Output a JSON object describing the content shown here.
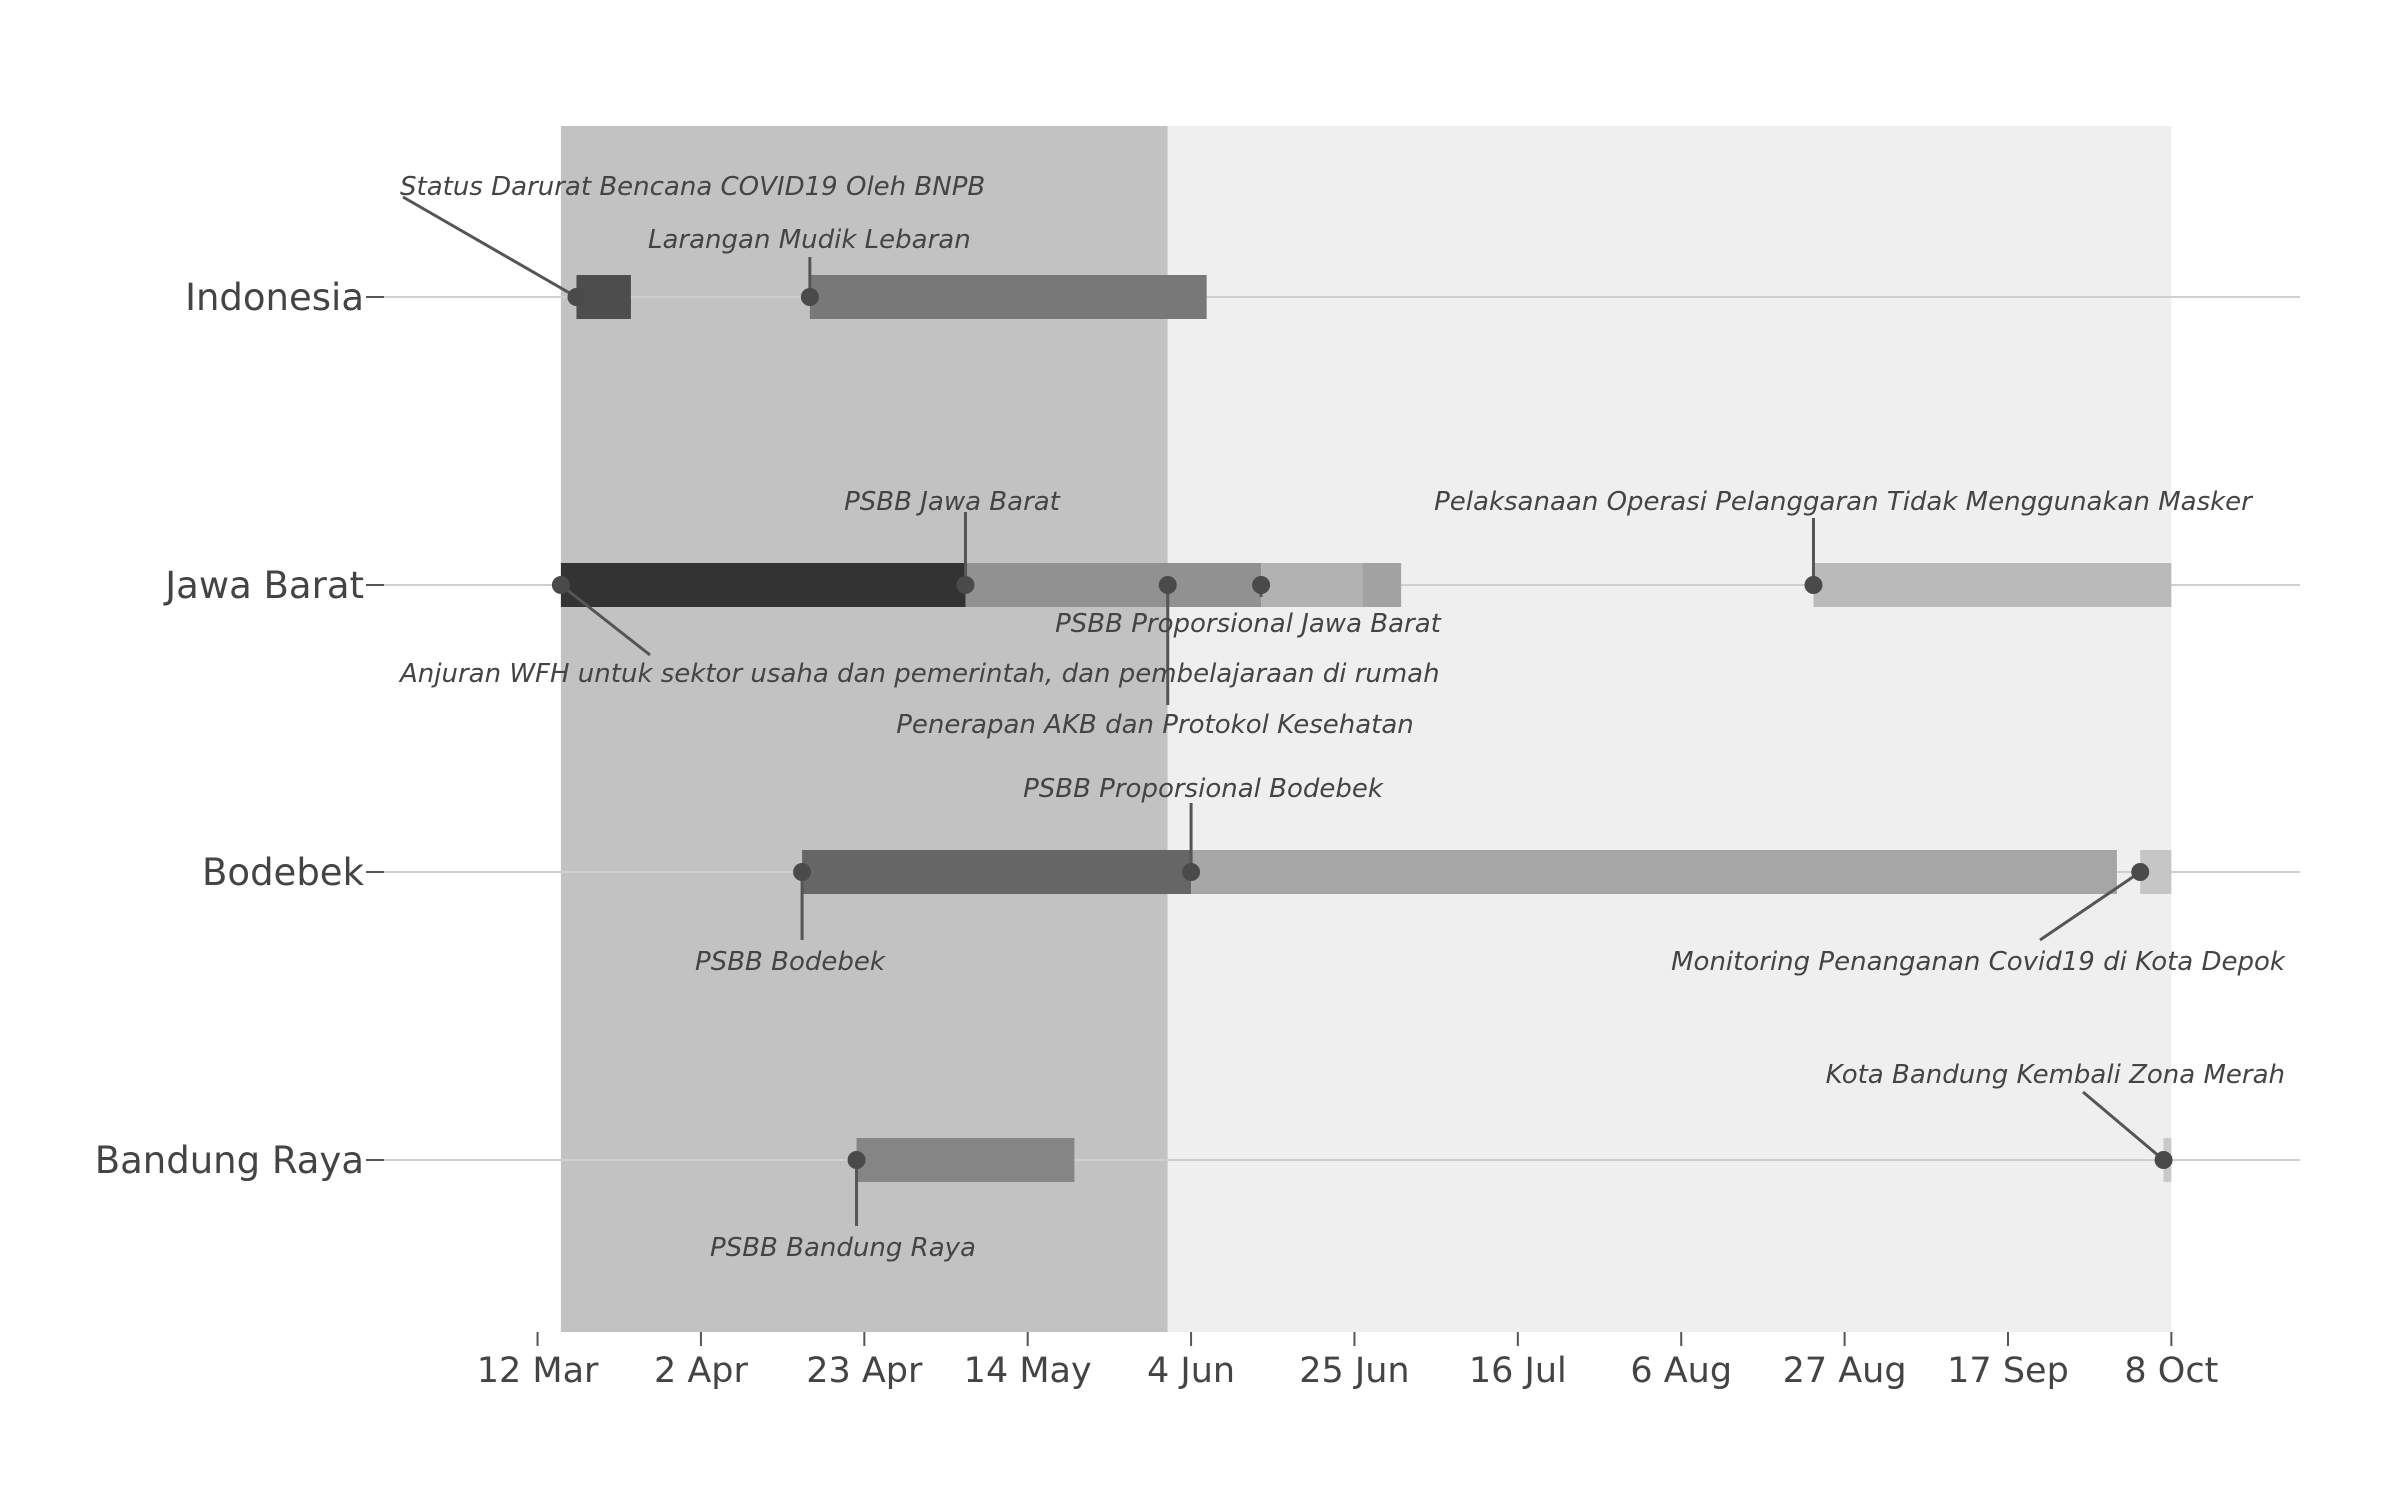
{
  "chart_data": {
    "type": "timeline",
    "title": "",
    "xlabel": "",
    "ylabel": "",
    "x_range": [
      "2020-03-10",
      "2020-10-14"
    ],
    "grid": "horizontal",
    "categories": [
      "Indonesia",
      "Jawa Barat",
      "Bodebek",
      "Bandung Raya"
    ],
    "x_ticks": [
      {
        "date": "2020-03-12",
        "label": "12 Mar"
      },
      {
        "date": "2020-04-02",
        "label": "2 Apr"
      },
      {
        "date": "2020-04-23",
        "label": "23 Apr"
      },
      {
        "date": "2020-05-14",
        "label": "14 May"
      },
      {
        "date": "2020-06-04",
        "label": "4 Jun"
      },
      {
        "date": "2020-06-25",
        "label": "25 Jun"
      },
      {
        "date": "2020-07-16",
        "label": "16 Jul"
      },
      {
        "date": "2020-08-06",
        "label": "6 Aug"
      },
      {
        "date": "2020-08-27",
        "label": "27 Aug"
      },
      {
        "date": "2020-09-17",
        "label": "17 Sep"
      },
      {
        "date": "2020-10-08",
        "label": "8 Oct"
      }
    ],
    "shaded_periods": [
      {
        "start": "2020-03-15",
        "end": "2020-06-01",
        "color": "#c2c2c2"
      },
      {
        "start": "2020-06-01",
        "end": "2020-10-08",
        "color": "#efefef"
      }
    ],
    "bars": [
      {
        "category": "Indonesia",
        "start": "2020-03-17",
        "end": "2020-03-24",
        "color": "#4d4d4d"
      },
      {
        "category": "Indonesia",
        "start": "2020-04-16",
        "end": "2020-06-06",
        "color": "#787878"
      },
      {
        "category": "Jawa Barat",
        "start": "2020-03-15",
        "end": "2020-05-06",
        "color": "#333333"
      },
      {
        "category": "Jawa Barat",
        "start": "2020-05-06",
        "end": "2020-06-13",
        "color": "#919191"
      },
      {
        "category": "Jawa Barat",
        "start": "2020-06-13",
        "end": "2020-06-26",
        "color": "#b2b2b2"
      },
      {
        "category": "Jawa Barat",
        "start": "2020-06-26",
        "end": "2020-07-01",
        "color": "#a3a3a3"
      },
      {
        "category": "Jawa Barat",
        "start": "2020-08-23",
        "end": "2020-10-08",
        "color": "#bababa"
      },
      {
        "category": "Bodebek",
        "start": "2020-04-15",
        "end": "2020-06-04",
        "color": "#666666"
      },
      {
        "category": "Bodebek",
        "start": "2020-06-04",
        "end": "2020-10-01",
        "color": "#a6a6a6"
      },
      {
        "category": "Bodebek",
        "start": "2020-10-04",
        "end": "2020-10-08",
        "color": "#c6c6c6"
      },
      {
        "category": "Bandung Raya",
        "start": "2020-04-22",
        "end": "2020-05-20",
        "color": "#858585"
      },
      {
        "category": "Bandung Raya",
        "start": "2020-10-07",
        "end": "2020-10-08",
        "color": "#c9c9c9"
      }
    ],
    "events": [
      {
        "category": "Indonesia",
        "date": "2020-03-17",
        "label": "Status Darurat Bencana COVID19 Oleh BNPB"
      },
      {
        "category": "Indonesia",
        "date": "2020-04-16",
        "label": "Larangan Mudik Lebaran"
      },
      {
        "category": "Jawa Barat",
        "date": "2020-03-15",
        "label": "Anjuran WFH untuk sektor usaha dan pemerintah, dan pembelajaraan di rumah"
      },
      {
        "category": "Jawa Barat",
        "date": "2020-05-06",
        "label": "PSBB Jawa Barat"
      },
      {
        "category": "Jawa Barat",
        "date": "2020-06-01",
        "label": "Penerapan AKB dan Protokol Kesehatan"
      },
      {
        "category": "Jawa Barat",
        "date": "2020-06-13",
        "label": "PSBB Proporsional Jawa Barat"
      },
      {
        "category": "Jawa Barat",
        "date": "2020-08-23",
        "label": "Pelaksanaan Operasi Pelanggaran Tidak Menggunakan Masker"
      },
      {
        "category": "Bodebek",
        "date": "2020-04-15",
        "label": "PSBB Bodebek"
      },
      {
        "category": "Bodebek",
        "date": "2020-06-04",
        "label": "PSBB Proporsional Bodebek"
      },
      {
        "category": "Bodebek",
        "date": "2020-10-04",
        "label": "Monitoring Penanganan Covid19 di Kota Depok"
      },
      {
        "category": "Bandung Raya",
        "date": "2020-04-22",
        "label": "PSBB Bandung Raya"
      },
      {
        "category": "Bandung Raya",
        "date": "2020-10-07",
        "label": "Kota Bandung Kembali Zona Merah"
      }
    ],
    "colors": {
      "gridline": "#cfcfcf",
      "dot": "#4a4a4a",
      "leader": "#555555",
      "text": "#444444"
    }
  }
}
